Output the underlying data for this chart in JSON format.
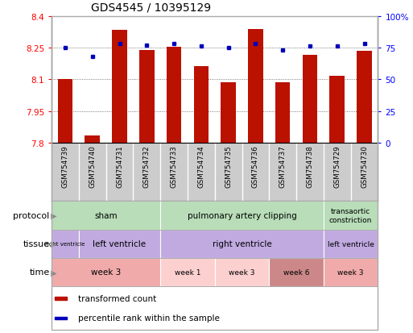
{
  "title": "GDS4545 / 10395129",
  "samples": [
    "GSM754739",
    "GSM754740",
    "GSM754731",
    "GSM754732",
    "GSM754733",
    "GSM754734",
    "GSM754735",
    "GSM754736",
    "GSM754737",
    "GSM754738",
    "GSM754729",
    "GSM754730"
  ],
  "bar_values": [
    8.103,
    7.834,
    8.335,
    8.237,
    8.253,
    8.163,
    8.087,
    8.338,
    8.087,
    8.215,
    8.117,
    8.235
  ],
  "percentile_values": [
    75,
    68,
    78,
    77,
    78,
    76,
    75,
    78,
    73,
    76,
    76,
    78
  ],
  "bar_bottom": 7.8,
  "ylim_left": [
    7.8,
    8.4
  ],
  "ylim_right": [
    0,
    100
  ],
  "yticks_left": [
    7.8,
    7.95,
    8.1,
    8.25,
    8.4
  ],
  "yticks_right": [
    0,
    25,
    50,
    75,
    100
  ],
  "ytick_labels_left": [
    "7.8",
    "7.95",
    "8.1",
    "8.25",
    "8.4"
  ],
  "ytick_labels_right": [
    "0",
    "25",
    "50",
    "75",
    "100%"
  ],
  "bar_color": "#bb1100",
  "dot_color": "#0000bb",
  "protocol_groups": [
    {
      "label": "sham",
      "start": 0,
      "end": 4,
      "color": "#b8ddb8"
    },
    {
      "label": "pulmonary artery clipping",
      "start": 4,
      "end": 10,
      "color": "#b8ddb8"
    },
    {
      "label": "transaortic\nconstriction",
      "start": 10,
      "end": 12,
      "color": "#b8ddb8"
    }
  ],
  "tissue_groups": [
    {
      "label": "right ventricle",
      "start": 0,
      "end": 1,
      "color": "#c0aae0"
    },
    {
      "label": "left ventricle",
      "start": 1,
      "end": 4,
      "color": "#c0aae0"
    },
    {
      "label": "right ventricle",
      "start": 4,
      "end": 10,
      "color": "#c0aae0"
    },
    {
      "label": "left ventricle",
      "start": 10,
      "end": 12,
      "color": "#c0aae0"
    }
  ],
  "time_groups": [
    {
      "label": "week 3",
      "start": 0,
      "end": 4,
      "color": "#f0aaaa"
    },
    {
      "label": "week 1",
      "start": 4,
      "end": 6,
      "color": "#fdd0d0"
    },
    {
      "label": "week 3",
      "start": 6,
      "end": 8,
      "color": "#fdd0d0"
    },
    {
      "label": "week 6",
      "start": 8,
      "end": 10,
      "color": "#cc8888"
    },
    {
      "label": "week 3",
      "start": 10,
      "end": 12,
      "color": "#f0aaaa"
    }
  ],
  "sample_bg_color": "#cccccc",
  "sample_border_color": "#999999",
  "grid_color": "#555555",
  "bg_color": "#ffffff",
  "figure_border_color": "#aaaaaa"
}
